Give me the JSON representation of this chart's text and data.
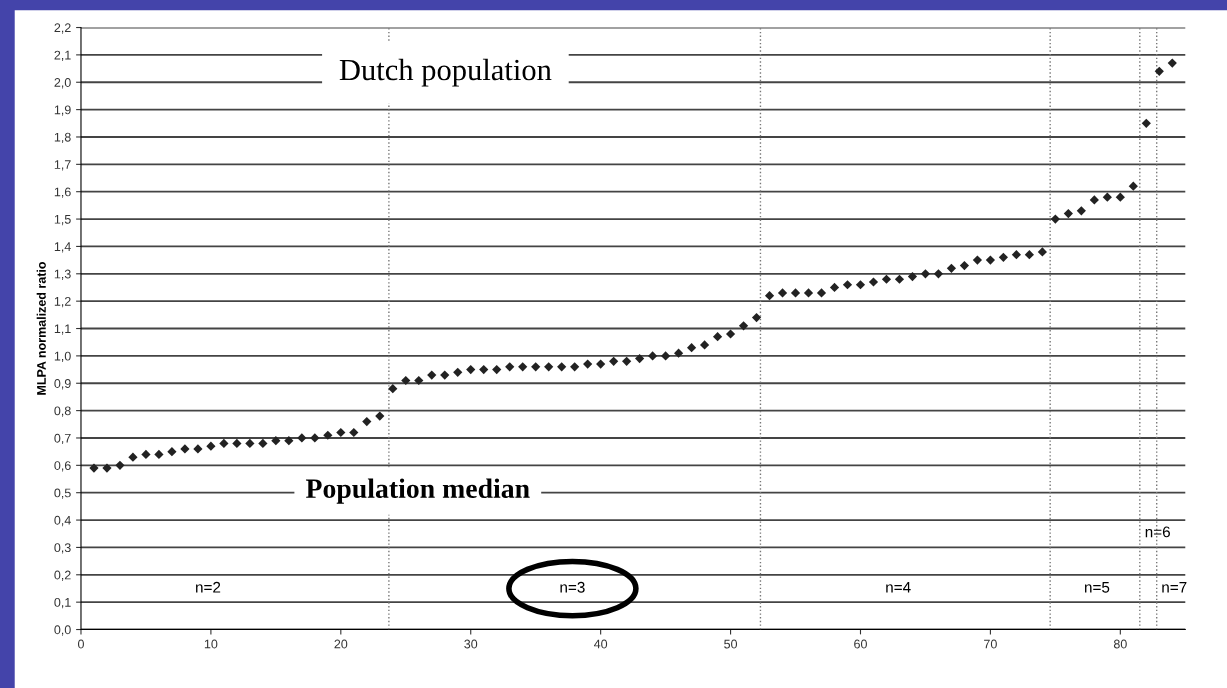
{
  "chart_data": {
    "type": "scatter",
    "title": "Dutch population",
    "ylabel": "MLPA normalized ratio",
    "x": [
      1,
      2,
      3,
      4,
      5,
      6,
      7,
      8,
      9,
      10,
      11,
      12,
      13,
      14,
      15,
      16,
      17,
      18,
      19,
      20,
      21,
      22,
      23,
      24,
      25,
      26,
      27,
      28,
      29,
      30,
      31,
      32,
      33,
      34,
      35,
      36,
      37,
      38,
      39,
      40,
      41,
      42,
      43,
      44,
      45,
      46,
      47,
      48,
      49,
      50,
      51,
      52,
      53,
      54,
      55,
      56,
      57,
      58,
      59,
      60,
      61,
      62,
      63,
      64,
      65,
      66,
      67,
      68,
      69,
      70,
      71,
      72,
      73,
      74,
      75,
      76,
      77,
      78,
      79,
      80,
      81,
      82,
      83,
      84
    ],
    "series": [
      {
        "color": "#222222",
        "values": [
          0.59,
          0.59,
          0.6,
          0.63,
          0.64,
          0.64,
          0.65,
          0.66,
          0.66,
          0.67,
          0.68,
          0.68,
          0.68,
          0.68,
          0.69,
          0.69,
          0.7,
          0.7,
          0.71,
          0.72,
          0.72,
          0.76,
          0.78,
          0.88,
          0.91,
          0.91,
          0.93,
          0.93,
          0.94,
          0.95,
          0.95,
          0.95,
          0.96,
          0.96,
          0.96,
          0.96,
          0.96,
          0.96,
          0.97,
          0.97,
          0.98,
          0.98,
          0.99,
          1.0,
          1.0,
          1.01,
          1.03,
          1.04,
          1.07,
          1.08,
          1.11,
          1.14,
          1.22,
          1.23,
          1.23,
          1.23,
          1.23,
          1.25,
          1.26,
          1.26,
          1.27,
          1.28,
          1.28,
          1.29,
          1.3,
          1.3,
          1.32,
          1.33,
          1.35,
          1.35,
          1.36,
          1.37,
          1.37,
          1.38,
          1.5,
          1.52,
          1.53,
          1.57,
          1.58,
          1.58,
          1.62,
          1.85,
          2.04,
          2.07
        ]
      }
    ],
    "marker": "diamond",
    "xlim": [
      0,
      85
    ],
    "xticks": [
      0,
      10,
      20,
      30,
      40,
      50,
      60,
      70,
      80
    ],
    "ylim": [
      0,
      2.2
    ],
    "yticks": [
      {
        "value": 0,
        "label": "0,0"
      },
      {
        "value": 0.1,
        "label": "0,1"
      },
      {
        "value": 0.2,
        "label": "0,2"
      },
      {
        "value": 0.3,
        "label": "0,3"
      },
      {
        "value": 0.4,
        "label": "0,4"
      },
      {
        "value": 0.5,
        "label": "0,5"
      },
      {
        "value": 0.6,
        "label": "0,6"
      },
      {
        "value": 0.7,
        "label": "0,7"
      },
      {
        "value": 0.8,
        "label": "0,8"
      },
      {
        "value": 0.9,
        "label": "0,9"
      },
      {
        "value": 1.0,
        "label": "1,0"
      },
      {
        "value": 1.1,
        "label": "1,1"
      },
      {
        "value": 1.2,
        "label": "1,2"
      },
      {
        "value": 1.3,
        "label": "1,3"
      },
      {
        "value": 1.4,
        "label": "1,4"
      },
      {
        "value": 1.5,
        "label": "1,5"
      },
      {
        "value": 1.6,
        "label": "1,6"
      },
      {
        "value": 1.7,
        "label": "1,7"
      },
      {
        "value": 1.8,
        "label": "1,8"
      },
      {
        "value": 1.9,
        "label": "1,9"
      },
      {
        "value": 2.0,
        "label": "2,0"
      },
      {
        "value": 2.1,
        "label": "2,1"
      },
      {
        "value": 2.2,
        "label": "2,2"
      }
    ],
    "grid": "y",
    "ref_lines": [
      {
        "axis": "x",
        "value": 23.7,
        "color": "#777777",
        "line_style": "dotted"
      },
      {
        "axis": "x",
        "value": 52.3,
        "color": "#777777",
        "line_style": "dotted"
      },
      {
        "axis": "x",
        "value": 74.6,
        "color": "#777777",
        "line_style": "dotted"
      },
      {
        "axis": "x",
        "value": 81.5,
        "color": "#777777",
        "line_style": "dotted"
      },
      {
        "axis": "x",
        "value": 82.8,
        "color": "#777777",
        "line_style": "dotted"
      }
    ],
    "annotations": [
      "Population median",
      "n=2",
      "n=3",
      "n=4",
      "n=5",
      "n=6",
      "n=7"
    ]
  }
}
